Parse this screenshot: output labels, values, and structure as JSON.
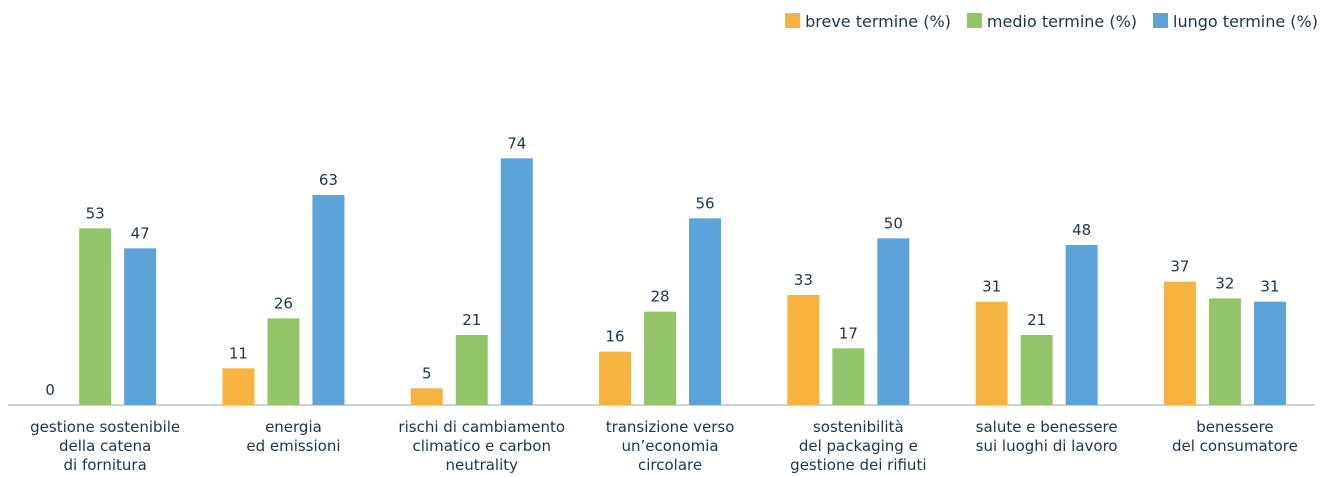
{
  "chart_data": {
    "type": "bar",
    "categories": [
      [
        "gestione sostenibile",
        "della catena",
        "di fornitura"
      ],
      [
        "energia",
        "ed emissioni"
      ],
      [
        "rischi di cambiamento",
        "climatico e carbon",
        "neutrality"
      ],
      [
        "transizione verso",
        "un’economia",
        "circolare"
      ],
      [
        "sostenibilità",
        "del packaging e",
        "gestione dei rifiuti"
      ],
      [
        "salute e benessere",
        "sui luoghi di lavoro"
      ],
      [
        "benessere",
        "del consumatore"
      ]
    ],
    "series": [
      {
        "name": "breve termine (%)",
        "color": "#f7b33f",
        "values": [
          0,
          11,
          5,
          16,
          33,
          31,
          37
        ]
      },
      {
        "name": "medio termine (%)",
        "color": "#93c46a",
        "values": [
          53,
          26,
          21,
          28,
          17,
          21,
          32
        ]
      },
      {
        "name": "lungo termine (%)",
        "color": "#5ba3d9",
        "values": [
          47,
          63,
          74,
          56,
          50,
          48,
          31
        ]
      }
    ],
    "ylim": [
      0,
      75
    ],
    "legend": "top-right"
  }
}
